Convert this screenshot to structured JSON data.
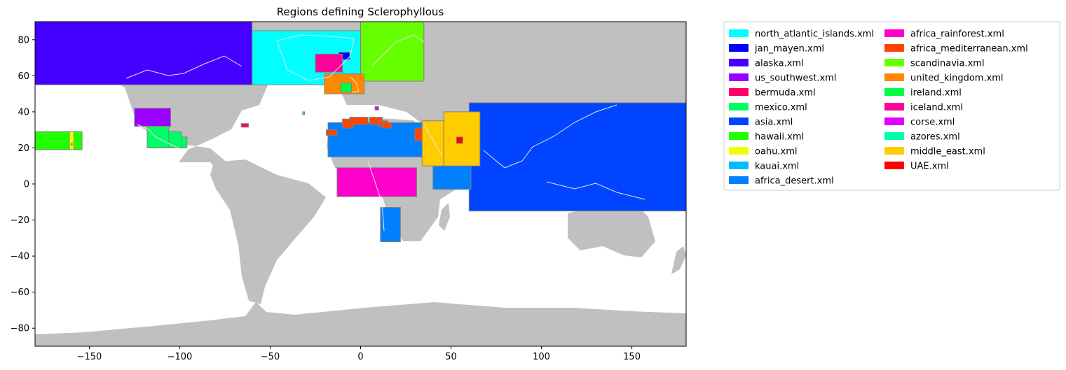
{
  "title": "Regions defining Sclerophyllous",
  "axes": {
    "xlim": [
      -180,
      180
    ],
    "ylim": [
      -90,
      90
    ],
    "xticks": [
      -150,
      -100,
      -50,
      0,
      50,
      100,
      150
    ],
    "yticks": [
      -80,
      -60,
      -40,
      -20,
      0,
      20,
      40,
      60,
      80
    ]
  },
  "colors": {
    "land": "#c0c0c0",
    "ocean": "#ffffff",
    "coastline": "#e6e6e6",
    "region_edge": "#808080"
  },
  "chart_data": {
    "type": "map",
    "title": "Regions defining Sclerophyllous",
    "xlim": [
      -180,
      180
    ],
    "ylim": [
      -90,
      90
    ],
    "legend_position": "outside-right",
    "legend_columns": 2,
    "regions": [
      {
        "name": "north_atlantic_islands.xml",
        "color": "#00ffff",
        "boxes": [
          [
            -60,
            55,
            0,
            85
          ]
        ]
      },
      {
        "name": "jan_mayen.xml",
        "color": "#0000ff",
        "boxes": [
          [
            -12,
            69,
            -6,
            73
          ]
        ]
      },
      {
        "name": "alaska.xml",
        "color": "#4400ff",
        "boxes": [
          [
            -180,
            55,
            -60,
            90
          ]
        ]
      },
      {
        "name": "us_southwest.xml",
        "color": "#9900ff",
        "boxes": [
          [
            -125,
            32,
            -105,
            42
          ]
        ]
      },
      {
        "name": "bermuda.xml",
        "color": "#ff0066",
        "boxes": [
          [
            -66,
            31.5,
            -62,
            33.5
          ]
        ]
      },
      {
        "name": "mexico.xml",
        "color": "#00ff66",
        "boxes": [
          [
            -118,
            20,
            -106,
            32
          ],
          [
            -106,
            20,
            -99,
            29
          ],
          [
            -99,
            20,
            -96,
            26
          ]
        ]
      },
      {
        "name": "asia.xml",
        "color": "#0044ff",
        "boxes": [
          [
            60,
            -15,
            180,
            45
          ]
        ]
      },
      {
        "name": "hawaii.xml",
        "color": "#22ff00",
        "boxes": [
          [
            -180,
            19,
            -154,
            29
          ]
        ]
      },
      {
        "name": "oahu.xml",
        "color": "#eeff00",
        "boxes": [
          [
            -161,
            19,
            -158.5,
            29
          ]
        ]
      },
      {
        "name": "kauai.xml",
        "color": "#00bbff",
        "boxes": [
          [
            -160,
            21.5,
            -159.4,
            22.5
          ]
        ]
      },
      {
        "name": "africa_desert.xml",
        "color": "#0080ff",
        "boxes": [
          [
            -18,
            15,
            35,
            34
          ],
          [
            40,
            -3,
            61,
            10
          ],
          [
            11,
            -32,
            22,
            -13
          ]
        ]
      },
      {
        "name": "africa_rainforest.xml",
        "color": "#ff00cc",
        "boxes": [
          [
            -13,
            -7,
            31,
            9
          ]
        ]
      },
      {
        "name": "africa_mediterranean.xml",
        "color": "#ff4400",
        "boxes": [
          [
            -19,
            27,
            -13,
            30
          ],
          [
            -10,
            31,
            -4,
            36
          ],
          [
            -6,
            33,
            4,
            37
          ],
          [
            5,
            33,
            12,
            37
          ],
          [
            10,
            32,
            15,
            35
          ],
          [
            12,
            31,
            17,
            34
          ],
          [
            30,
            24,
            36,
            31
          ]
        ]
      },
      {
        "name": "scandinavia.xml",
        "color": "#66ff00",
        "boxes": [
          [
            0,
            57,
            35,
            90
          ]
        ]
      },
      {
        "name": "united_kingdom.xml",
        "color": "#ff8800",
        "boxes": [
          [
            -20,
            50,
            2,
            61
          ]
        ]
      },
      {
        "name": "ireland.xml",
        "color": "#00ff44",
        "boxes": [
          [
            -11,
            51,
            -5,
            56
          ]
        ]
      },
      {
        "name": "iceland.xml",
        "color": "#ff0099",
        "boxes": [
          [
            -25,
            62,
            -10,
            72
          ]
        ]
      },
      {
        "name": "corse.xml",
        "color": "#dd00ff",
        "boxes": [
          [
            8,
            41,
            10,
            43
          ]
        ]
      },
      {
        "name": "azores.xml",
        "color": "#00ffaa",
        "boxes": [
          [
            -32,
            38.5,
            -31,
            40
          ]
        ]
      },
      {
        "name": "middle_east.xml",
        "color": "#ffcc00",
        "boxes": [
          [
            34,
            10,
            46,
            35
          ],
          [
            46,
            10,
            66,
            40
          ]
        ]
      },
      {
        "name": "UAE.xml",
        "color": "#ff0000",
        "boxes": [
          [
            53,
            22.5,
            56.5,
            26
          ]
        ]
      }
    ]
  }
}
